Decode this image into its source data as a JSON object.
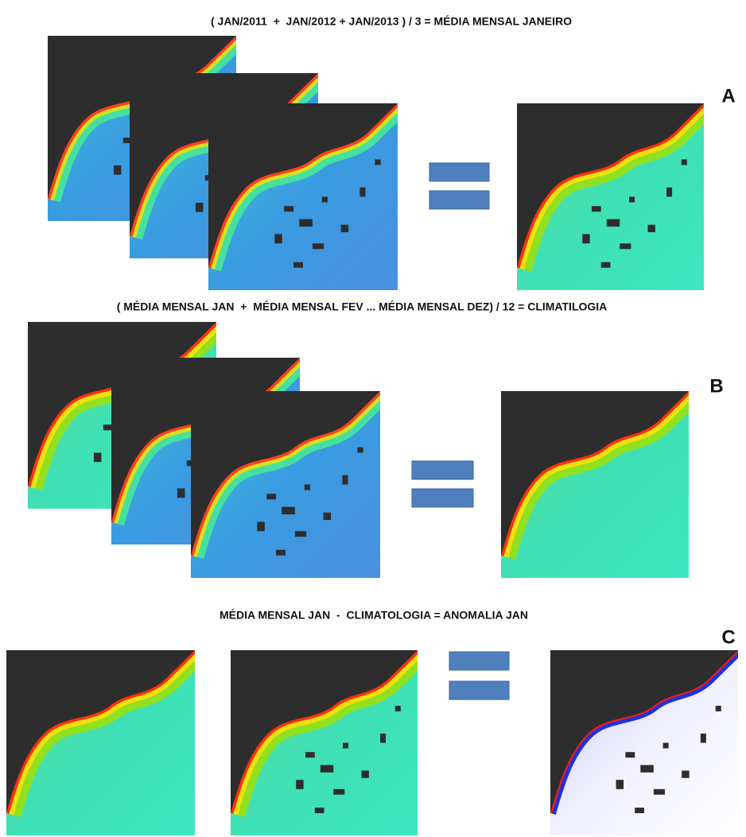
{
  "rows": [
    {
      "formula": "( JAN/2011  +  JAN/2012 + JAN/2013 ) / 3 = MÉDIA MENSAL JANEIRO",
      "label": "A"
    },
    {
      "formula": "( MÉDIA MENSAL JAN  +  MÉDIA MENSAL FEV ... MÉDIA MENSAL DEZ) / 12 = CLIMATILOGIA",
      "label": "B"
    },
    {
      "formula": "MÉDIA MENSAL JAN  -  CLIMATOLOGIA = ANOMALIA JAN",
      "label": "C"
    }
  ]
}
